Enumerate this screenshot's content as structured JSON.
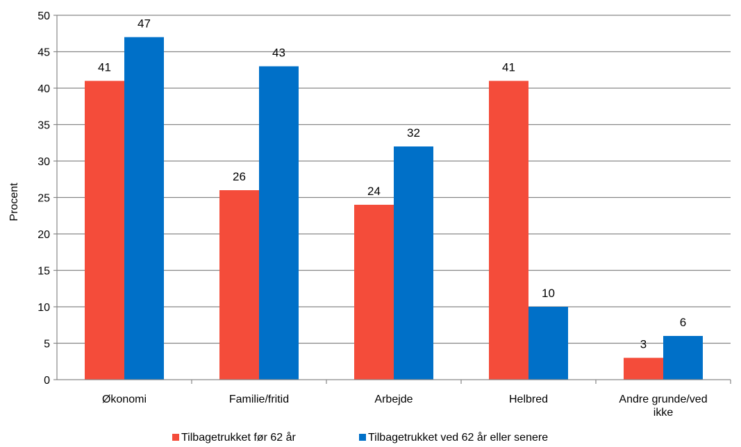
{
  "chart_data": {
    "type": "bar",
    "title": "",
    "xlabel": "",
    "ylabel": "Procent",
    "ylim": [
      0,
      50
    ],
    "yticks": [
      "0",
      "5",
      "10",
      "15",
      "20",
      "25",
      "30",
      "35",
      "40",
      "45",
      "50"
    ],
    "grid": true,
    "legend_position": "bottom",
    "categories": [
      [
        "Økonomi"
      ],
      [
        "Familie/fritid"
      ],
      [
        "Arbejde"
      ],
      [
        "Helbred"
      ],
      [
        "Andre grunde/ved",
        "ikke"
      ]
    ],
    "series": [
      {
        "name": "Tilbagetrukket før 62 år",
        "color": "#f44c3a",
        "values": [
          41,
          26,
          24,
          41,
          3
        ]
      },
      {
        "name": "Tilbagetrukket ved 62 år eller senere",
        "color": "#0070c8",
        "values": [
          47,
          43,
          32,
          10,
          6
        ]
      }
    ]
  }
}
